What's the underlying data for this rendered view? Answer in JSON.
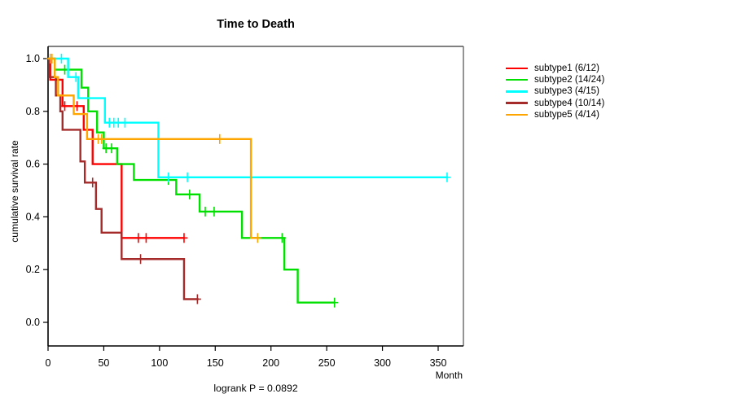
{
  "title": "Time to Death",
  "annotation": {
    "logrank_p_label": "logrank P = 0.0892"
  },
  "axes": {
    "xlabel": "Month",
    "ylabel": "cumulative survival rate",
    "x_ticks": [
      0,
      50,
      100,
      150,
      200,
      250,
      300,
      350
    ],
    "y_ticks": [
      0.0,
      0.2,
      0.4,
      0.6,
      0.8,
      1.0
    ],
    "x_range": [
      0,
      372
    ],
    "y_range": [
      0.0,
      1.0
    ]
  },
  "legend": {
    "items": [
      {
        "label": "subtype1 (6/12)",
        "color": "#FF0000"
      },
      {
        "label": "subtype2 (14/24)",
        "color": "#00E000"
      },
      {
        "label": "subtype3 (4/15)",
        "color": "#00FFFF"
      },
      {
        "label": "subtype4 (10/14)",
        "color": "#A52A2A"
      },
      {
        "label": "subtype5 (4/14)",
        "color": "#FFA500"
      }
    ]
  },
  "chart_data": {
    "type": "line",
    "subtype": "kaplan-meier-step",
    "title": "Time to Death",
    "xlabel": "Month",
    "ylabel": "cumulative survival rate",
    "xlim": [
      0,
      372
    ],
    "ylim": [
      0.0,
      1.0
    ],
    "grid": false,
    "legend_position": "right-outside",
    "series": [
      {
        "name": "subtype1 (6/12)",
        "color": "#FF0000",
        "steps": [
          [
            2,
            0.92
          ],
          [
            13,
            0.82
          ],
          [
            32,
            0.73
          ],
          [
            40,
            0.6
          ],
          [
            66,
            0.32
          ]
        ],
        "end_time": 122.5,
        "censor_ticks": [
          [
            15,
            0.82
          ],
          [
            26,
            0.82
          ],
          [
            81,
            0.32
          ],
          [
            88,
            0.32
          ],
          [
            122,
            0.32
          ]
        ]
      },
      {
        "name": "subtype2 (14/24)",
        "color": "#00E000",
        "steps": [
          [
            6,
            0.958
          ],
          [
            30,
            0.89
          ],
          [
            36,
            0.8
          ],
          [
            44,
            0.72
          ],
          [
            50,
            0.66
          ],
          [
            62,
            0.6
          ],
          [
            77,
            0.54
          ],
          [
            115,
            0.485
          ],
          [
            136,
            0.42
          ],
          [
            174,
            0.32
          ],
          [
            212,
            0.2
          ],
          [
            224,
            0.075
          ]
        ],
        "end_time": 257.7,
        "censor_ticks": [
          [
            15,
            0.958
          ],
          [
            52,
            0.66
          ],
          [
            57,
            0.66
          ],
          [
            108,
            0.54
          ],
          [
            127,
            0.485
          ],
          [
            141,
            0.42
          ],
          [
            149,
            0.42
          ],
          [
            210,
            0.32
          ],
          [
            257,
            0.075
          ]
        ]
      },
      {
        "name": "subtype3 (4/15)",
        "color": "#00FFFF",
        "steps": [
          [
            18,
            0.93
          ],
          [
            27,
            0.85
          ],
          [
            51,
            0.757
          ],
          [
            99,
            0.55
          ]
        ],
        "end_time": 358.7,
        "censor_ticks": [
          [
            12,
            1.0
          ],
          [
            25,
            0.93
          ],
          [
            55,
            0.757
          ],
          [
            59,
            0.757
          ],
          [
            63,
            0.757
          ],
          [
            69,
            0.757
          ],
          [
            108,
            0.55
          ],
          [
            125,
            0.55
          ],
          [
            358,
            0.55
          ]
        ]
      },
      {
        "name": "subtype4 (10/14)",
        "color": "#A52A2A",
        "steps": [
          [
            1,
            0.93
          ],
          [
            7,
            0.86
          ],
          [
            11,
            0.8
          ],
          [
            13,
            0.73
          ],
          [
            29,
            0.61
          ],
          [
            33,
            0.53
          ],
          [
            43,
            0.43
          ],
          [
            48,
            0.34
          ],
          [
            66,
            0.24
          ],
          [
            122,
            0.088
          ]
        ],
        "end_time": 135,
        "censor_ticks": [
          [
            40,
            0.53
          ],
          [
            83,
            0.24
          ],
          [
            134,
            0.088
          ]
        ]
      },
      {
        "name": "subtype5 (4/14)",
        "color": "#FFA500",
        "steps": [
          [
            6,
            0.93
          ],
          [
            9,
            0.86
          ],
          [
            23,
            0.79
          ],
          [
            35,
            0.695
          ],
          [
            182,
            0.32
          ]
        ],
        "end_time": 188.4,
        "censor_ticks": [
          [
            2,
            1.0
          ],
          [
            3.5,
            1.0
          ],
          [
            45,
            0.695
          ],
          [
            48,
            0.695
          ],
          [
            154,
            0.695
          ],
          [
            188,
            0.32
          ]
        ]
      }
    ]
  }
}
